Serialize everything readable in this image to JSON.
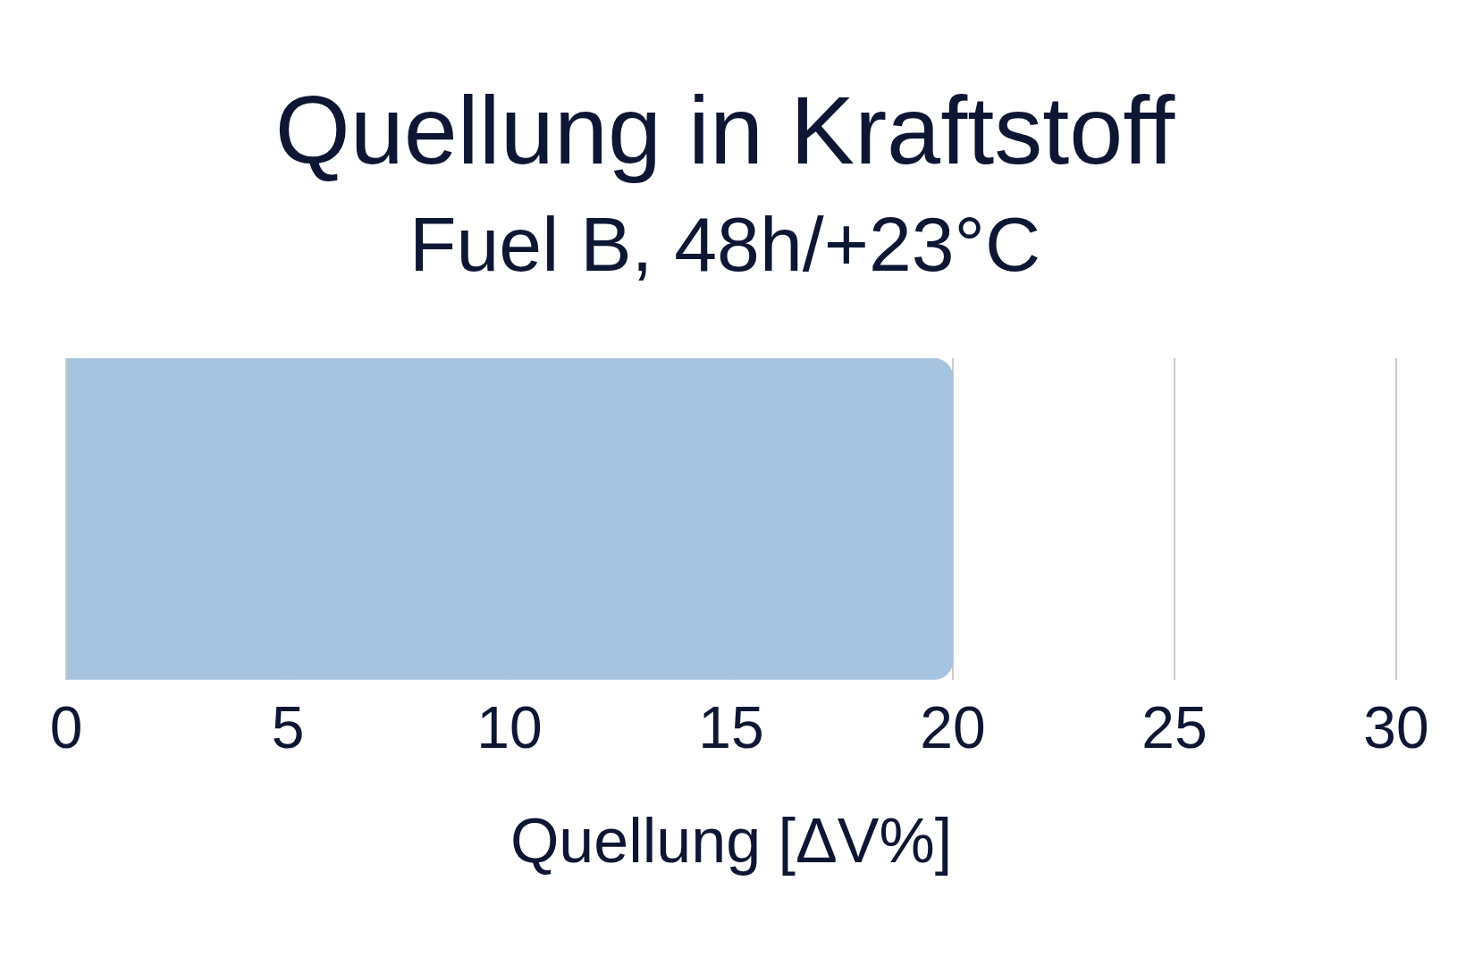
{
  "chart_data": {
    "type": "bar",
    "orientation": "horizontal",
    "title": "Quellung in Kraftstoff",
    "subtitle": "Fuel B, 48h/+23°C",
    "xlabel": "Quellung [ΔV%]",
    "categories": [
      null
    ],
    "values": [
      20
    ],
    "color": "#a6c4e0",
    "xlim": [
      0,
      30
    ],
    "xticks": [
      0,
      5,
      10,
      15,
      20,
      25,
      30
    ],
    "grid": "x",
    "legend": false
  }
}
